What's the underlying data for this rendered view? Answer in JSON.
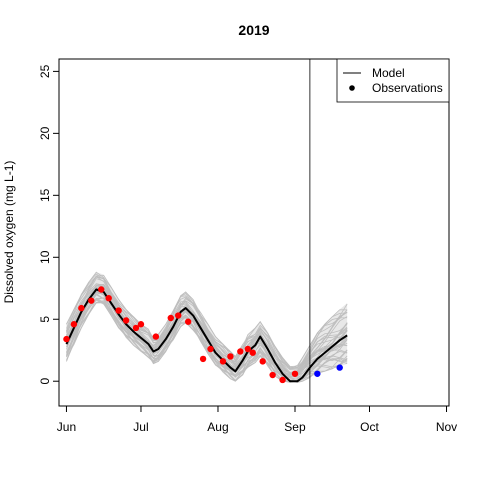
{
  "chart_data": {
    "type": "line",
    "title": "2019",
    "xlabel": "",
    "ylabel": "Dissolved oxygen (mg L-1)",
    "x_ticks": [
      "Jun",
      "Jul",
      "Aug",
      "Sep",
      "Oct",
      "Nov"
    ],
    "x_tick_dates": [
      "2019-06-01",
      "2019-07-01",
      "2019-08-01",
      "2019-09-01",
      "2019-10-01",
      "2019-11-01"
    ],
    "xlim": [
      "2019-05-29",
      "2019-11-02"
    ],
    "y_ticks": [
      0,
      5,
      10,
      15,
      20,
      25
    ],
    "ylim": [
      -2,
      26
    ],
    "grid": false,
    "legend": {
      "position": "top-right",
      "entries": [
        {
          "label": "Model",
          "symbol": "line",
          "color": "#000000"
        },
        {
          "label": "Observations",
          "symbol": "point",
          "color": "#000000"
        }
      ]
    },
    "forecast_start": "2019-09-07",
    "colors": {
      "ensemble": "#bebebe",
      "model": "#000000",
      "observed": "#ff0000",
      "future_observed": "#0000ff"
    },
    "model": {
      "name": "Model",
      "x": [
        "2019-06-01",
        "2019-06-04",
        "2019-06-07",
        "2019-06-10",
        "2019-06-13",
        "2019-06-16",
        "2019-06-19",
        "2019-06-22",
        "2019-06-25",
        "2019-06-28",
        "2019-07-01",
        "2019-07-04",
        "2019-07-06",
        "2019-07-08",
        "2019-07-11",
        "2019-07-14",
        "2019-07-17",
        "2019-07-19",
        "2019-07-22",
        "2019-07-25",
        "2019-07-28",
        "2019-07-31",
        "2019-08-03",
        "2019-08-06",
        "2019-08-08",
        "2019-08-11",
        "2019-08-13",
        "2019-08-16",
        "2019-08-18",
        "2019-08-21",
        "2019-08-24",
        "2019-08-27",
        "2019-08-30",
        "2019-09-02",
        "2019-09-04",
        "2019-09-07",
        "2019-09-10",
        "2019-09-13",
        "2019-09-16",
        "2019-09-19",
        "2019-09-22"
      ],
      "y": [
        3.0,
        4.3,
        5.6,
        6.6,
        7.4,
        7.2,
        6.3,
        5.4,
        4.6,
        4.0,
        3.5,
        3.0,
        2.4,
        2.6,
        3.4,
        4.4,
        5.6,
        5.9,
        5.3,
        4.3,
        3.3,
        2.3,
        1.7,
        1.1,
        0.8,
        1.7,
        2.4,
        2.9,
        3.6,
        2.6,
        1.5,
        0.6,
        0.0,
        0.0,
        0.3,
        1.1,
        1.8,
        2.3,
        2.8,
        3.3,
        3.7
      ]
    },
    "ensemble": {
      "x": [
        "2019-06-01",
        "2019-06-04",
        "2019-06-07",
        "2019-06-10",
        "2019-06-13",
        "2019-06-16",
        "2019-06-19",
        "2019-06-22",
        "2019-06-25",
        "2019-06-28",
        "2019-07-01",
        "2019-07-04",
        "2019-07-06",
        "2019-07-08",
        "2019-07-11",
        "2019-07-14",
        "2019-07-17",
        "2019-07-19",
        "2019-07-22",
        "2019-07-25",
        "2019-07-28",
        "2019-07-31",
        "2019-08-03",
        "2019-08-06",
        "2019-08-08",
        "2019-08-11",
        "2019-08-13",
        "2019-08-16",
        "2019-08-18",
        "2019-08-21",
        "2019-08-24",
        "2019-08-27",
        "2019-08-30",
        "2019-09-02",
        "2019-09-04",
        "2019-09-07",
        "2019-09-10",
        "2019-09-13",
        "2019-09-16",
        "2019-09-19",
        "2019-09-22"
      ],
      "lower": [
        1.6,
        2.9,
        4.3,
        5.4,
        6.3,
        6.2,
        5.3,
        4.3,
        3.5,
        2.9,
        2.4,
        1.9,
        1.4,
        1.6,
        2.4,
        3.3,
        4.4,
        4.7,
        4.1,
        3.2,
        2.2,
        1.3,
        0.7,
        0.2,
        0.0,
        0.5,
        1.1,
        1.5,
        2.0,
        1.2,
        0.4,
        0.0,
        -0.1,
        -0.1,
        0.0,
        0.3,
        0.6,
        0.8,
        1.0,
        1.2,
        1.4
      ],
      "upper": [
        4.6,
        5.8,
        7.0,
        8.0,
        8.8,
        8.6,
        7.6,
        6.6,
        5.8,
        5.2,
        4.6,
        4.2,
        3.6,
        3.8,
        4.6,
        5.7,
        6.9,
        7.2,
        6.6,
        5.6,
        4.6,
        3.6,
        3.0,
        2.4,
        2.0,
        3.0,
        3.8,
        4.3,
        4.8,
        3.9,
        2.8,
        1.9,
        1.2,
        1.3,
        1.9,
        2.9,
        3.9,
        4.6,
        5.2,
        5.8,
        6.3
      ]
    },
    "observations": {
      "name": "Observations",
      "x": [
        "2019-06-01",
        "2019-06-04",
        "2019-06-07",
        "2019-06-11",
        "2019-06-15",
        "2019-06-18",
        "2019-06-22",
        "2019-06-25",
        "2019-06-29",
        "2019-07-01",
        "2019-07-07",
        "2019-07-13",
        "2019-07-16",
        "2019-07-20",
        "2019-07-26",
        "2019-07-29",
        "2019-08-03",
        "2019-08-06",
        "2019-08-10",
        "2019-08-13",
        "2019-08-15",
        "2019-08-19",
        "2019-08-23",
        "2019-08-27",
        "2019-09-01"
      ],
      "y": [
        3.4,
        4.6,
        5.9,
        6.5,
        7.4,
        6.7,
        5.7,
        4.9,
        4.3,
        4.6,
        3.6,
        5.1,
        5.3,
        4.8,
        1.8,
        2.6,
        1.6,
        2.0,
        2.4,
        2.6,
        2.3,
        1.6,
        0.5,
        0.1,
        0.6
      ]
    },
    "future_observations": {
      "x": [
        "2019-09-10",
        "2019-09-19"
      ],
      "y": [
        0.6,
        1.1
      ]
    }
  }
}
